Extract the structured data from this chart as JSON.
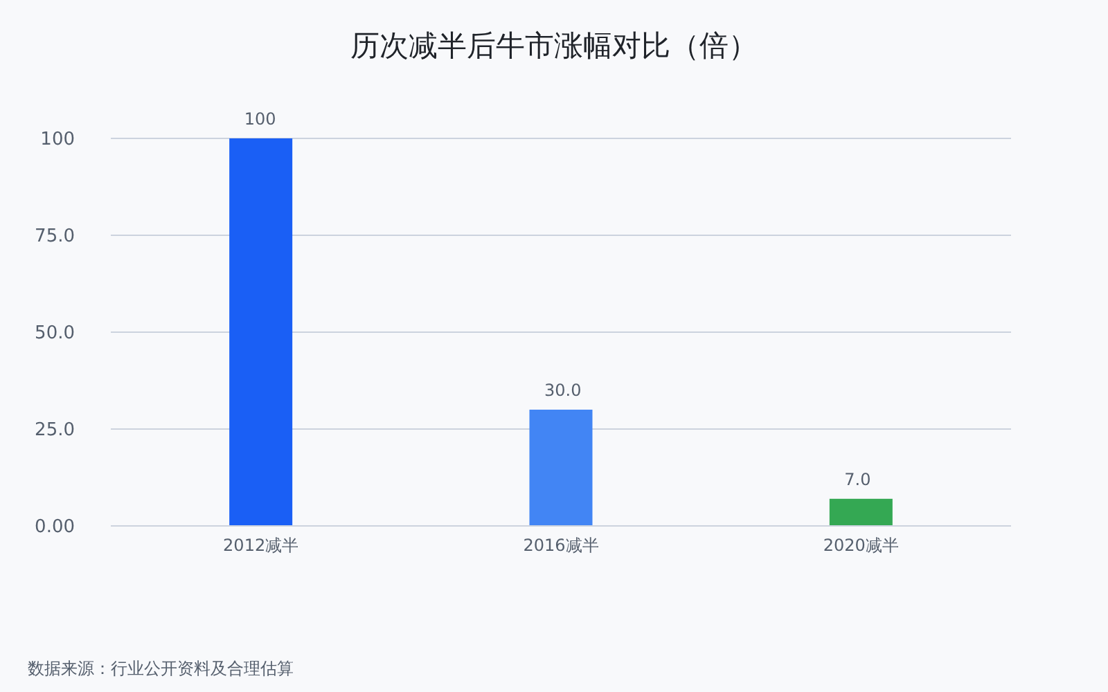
{
  "chart_data": {
    "type": "bar",
    "title": "历次减半后牛市涨幅对比（倍）",
    "categories": [
      "2012减半",
      "2016减半",
      "2020减半"
    ],
    "values": [
      100,
      30,
      7
    ],
    "colors": [
      "#1a5ff5",
      "#4285f4",
      "#34a853"
    ],
    "value_labels": [
      "100",
      "30.0",
      "7.0"
    ],
    "ylim": [
      0,
      100
    ],
    "yticks": [
      {
        "value": 0,
        "label": "0.00"
      },
      {
        "value": 25,
        "label": "25.0"
      },
      {
        "value": 50,
        "label": "50.0"
      },
      {
        "value": 75,
        "label": "75.0"
      },
      100
    ],
    "grid": "y",
    "annotations": [
      "数据来源：行业公开资料及合理估算"
    ]
  }
}
